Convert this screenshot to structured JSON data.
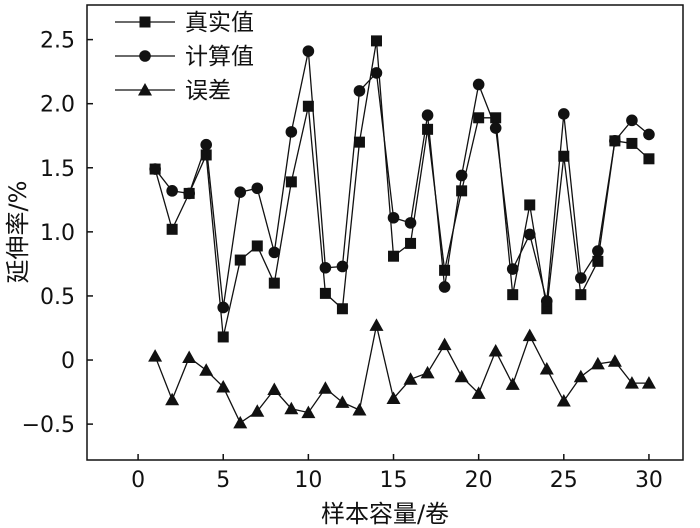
{
  "chart_data": {
    "type": "line",
    "title": "",
    "xlabel": "样本容量/卷",
    "ylabel": "延伸率/%",
    "xlim": [
      -3,
      32
    ],
    "ylim": [
      -0.78,
      2.77
    ],
    "xticks": [
      0,
      5,
      10,
      15,
      20,
      25,
      30
    ],
    "xtick_labels": [
      "0",
      "5",
      "10",
      "15",
      "20",
      "25",
      "30"
    ],
    "yticks": [
      -0.5,
      0,
      0.5,
      1.0,
      1.5,
      2.0,
      2.5
    ],
    "ytick_labels": [
      "−0.5",
      "0",
      "0.5",
      "1.0",
      "1.5",
      "2.0",
      "2.5"
    ],
    "grid": false,
    "legend_position": "top-left",
    "x": [
      1,
      2,
      3,
      4,
      5,
      6,
      7,
      8,
      9,
      10,
      11,
      12,
      13,
      14,
      15,
      16,
      17,
      18,
      19,
      20,
      21,
      22,
      23,
      24,
      25,
      26,
      27,
      28,
      29,
      30
    ],
    "series": [
      {
        "name": "真实值",
        "marker": "square",
        "values": [
          1.49,
          1.02,
          1.3,
          1.6,
          0.18,
          0.78,
          0.89,
          0.6,
          1.39,
          1.98,
          0.52,
          0.4,
          1.7,
          2.49,
          0.81,
          0.91,
          1.8,
          0.7,
          1.32,
          1.89,
          1.89,
          0.51,
          1.21,
          0.4,
          1.59,
          0.51,
          0.77,
          1.71,
          1.69,
          1.57
        ]
      },
      {
        "name": "计算值",
        "marker": "circle",
        "values": [
          1.49,
          1.32,
          1.3,
          1.68,
          0.41,
          1.31,
          1.34,
          0.84,
          1.78,
          2.41,
          0.72,
          0.73,
          2.1,
          2.24,
          1.11,
          1.07,
          1.91,
          0.57,
          1.44,
          2.15,
          1.81,
          0.71,
          0.98,
          0.46,
          1.92,
          0.64,
          0.85,
          1.71,
          1.87,
          1.76
        ]
      },
      {
        "name": "误差",
        "marker": "triangle",
        "values": [
          0.03,
          -0.31,
          0.02,
          -0.08,
          -0.21,
          -0.49,
          -0.4,
          -0.23,
          -0.38,
          -0.41,
          -0.22,
          -0.33,
          -0.39,
          0.27,
          -0.3,
          -0.15,
          -0.1,
          0.12,
          -0.13,
          -0.26,
          0.07,
          -0.19,
          0.19,
          -0.07,
          -0.32,
          -0.13,
          -0.03,
          -0.01,
          -0.18,
          -0.18
        ]
      }
    ]
  }
}
